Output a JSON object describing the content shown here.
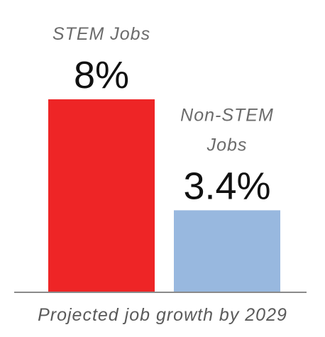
{
  "chart_data": {
    "type": "bar",
    "categories": [
      "STEM Jobs",
      "Non-STEM Jobs"
    ],
    "category_lines": [
      [
        "STEM Jobs"
      ],
      [
        "Non-STEM",
        "Jobs"
      ]
    ],
    "values": [
      8,
      3.4
    ],
    "value_labels": [
      "8%",
      "3.4%"
    ],
    "xlabel": "Projected job growth by 2029",
    "ylabel": "",
    "ylim": [
      0,
      9.5
    ],
    "grid": false,
    "legend": "none",
    "colors": [
      "#ee2526",
      "#98b8df"
    ],
    "axis_color": "#8a8a8a"
  }
}
